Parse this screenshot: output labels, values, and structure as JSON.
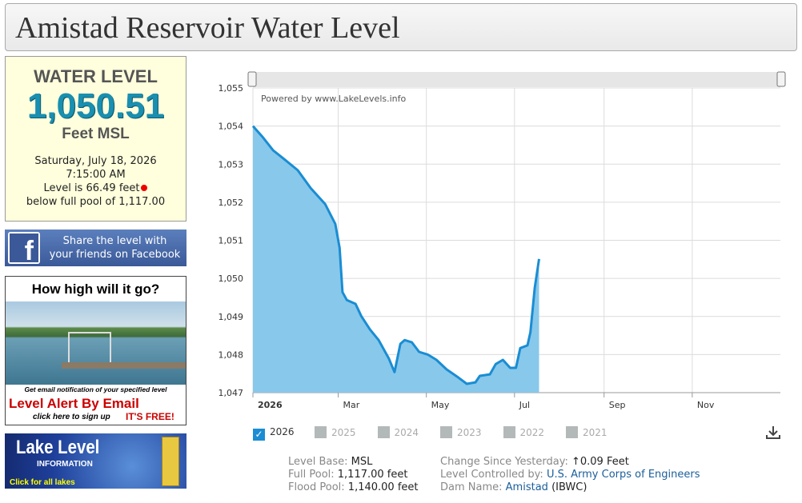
{
  "header": {
    "title": "Amistad Reservoir Water Level"
  },
  "sidebar": {
    "level_box": {
      "heading": "WATER LEVEL",
      "level": "1,050.51",
      "unit": "Feet MSL",
      "date": "Saturday, July 18, 2026",
      "time": "7:15:00 AM",
      "below_line": "Level is 66.49 feet",
      "full_pool_line": "below full pool of 1,117.00"
    },
    "facebook": {
      "text_line1": "Share the level with",
      "text_line2": "your friends on Facebook"
    },
    "alert_ad": {
      "heading": "How high will it go?",
      "note": "Get email notification of your specified level",
      "title": "Level Alert By Email",
      "signup": "click here to sign up",
      "free": "IT'S FREE!"
    },
    "lake_info": {
      "title": "Lake Level",
      "subtitle": "INFORMATION",
      "link": "Click for all lakes"
    }
  },
  "chart_data": {
    "type": "area",
    "annotation": "Powered by www.LakeLevels.info",
    "series": [
      {
        "name": "2026",
        "color": "#1a8dd3",
        "fill_color": "#88c8ea",
        "x": [
          "2026-01-01",
          "2026-01-08",
          "2026-01-15",
          "2026-01-22",
          "2026-02-01",
          "2026-02-10",
          "2026-02-20",
          "2026-02-27",
          "2026-03-02",
          "2026-03-04",
          "2026-03-07",
          "2026-03-13",
          "2026-03-17",
          "2026-03-23",
          "2026-03-29",
          "2026-04-05",
          "2026-04-09",
          "2026-04-13",
          "2026-04-16",
          "2026-04-21",
          "2026-04-26",
          "2026-05-02",
          "2026-05-08",
          "2026-05-15",
          "2026-05-23",
          "2026-05-29",
          "2026-06-04",
          "2026-06-07",
          "2026-06-14",
          "2026-06-18",
          "2026-06-23",
          "2026-06-28",
          "2026-07-02",
          "2026-07-05",
          "2026-07-10",
          "2026-07-12",
          "2026-07-15",
          "2026-07-18"
        ],
        "values": [
          1054.0,
          1053.7,
          1053.36,
          1053.15,
          1052.84,
          1052.37,
          1051.95,
          1051.43,
          1050.8,
          1049.64,
          1049.43,
          1049.33,
          1049.01,
          1048.66,
          1048.38,
          1047.9,
          1047.54,
          1048.28,
          1048.38,
          1048.32,
          1048.07,
          1048.0,
          1047.86,
          1047.61,
          1047.4,
          1047.23,
          1047.27,
          1047.44,
          1047.48,
          1047.75,
          1047.86,
          1047.65,
          1047.65,
          1048.17,
          1048.24,
          1048.59,
          1049.75,
          1050.51
        ]
      }
    ],
    "xlim": [
      "2026-01-01",
      "2027-01-01"
    ],
    "xticks": [
      {
        "value": "2026-01-01",
        "label": "2026"
      },
      {
        "value": "2026-03-01",
        "label": "Mar"
      },
      {
        "value": "2026-05-01",
        "label": "May"
      },
      {
        "value": "2026-07-01",
        "label": "Jul"
      },
      {
        "value": "2026-09-01",
        "label": "Sep"
      },
      {
        "value": "2026-11-01",
        "label": "Nov"
      }
    ],
    "ylim": [
      1047,
      1055
    ],
    "yticks": [
      {
        "value": 1047,
        "label": "1,047"
      },
      {
        "value": 1048,
        "label": "1,048"
      },
      {
        "value": 1049,
        "label": "1,049"
      },
      {
        "value": 1050,
        "label": "1,050"
      },
      {
        "value": 1051,
        "label": "1,051"
      },
      {
        "value": 1052,
        "label": "1,052"
      },
      {
        "value": 1053,
        "label": "1,053"
      },
      {
        "value": 1054,
        "label": "1,054"
      },
      {
        "value": 1055,
        "label": "1,055"
      }
    ],
    "grid": true
  },
  "year_toggles": [
    "2025",
    "2024",
    "2023",
    "2022",
    "2021"
  ],
  "info": {
    "level_base_label": "Level Base:",
    "level_base": "MSL",
    "full_pool_label": "Full Pool:",
    "full_pool": "1,117.00 feet",
    "flood_pool_label": "Flood Pool:",
    "flood_pool": "1,140.00 feet",
    "change_label": "Change Since Yesterday:",
    "change_arrow": "↑",
    "change": "0.09 Feet",
    "controlled_label": "Level Controlled by:",
    "controlled": "U.S. Army Corps of Engineers",
    "dam_label": "Dam Name:",
    "dam": "Amistad",
    "dam_agency": "(IBWC)"
  }
}
